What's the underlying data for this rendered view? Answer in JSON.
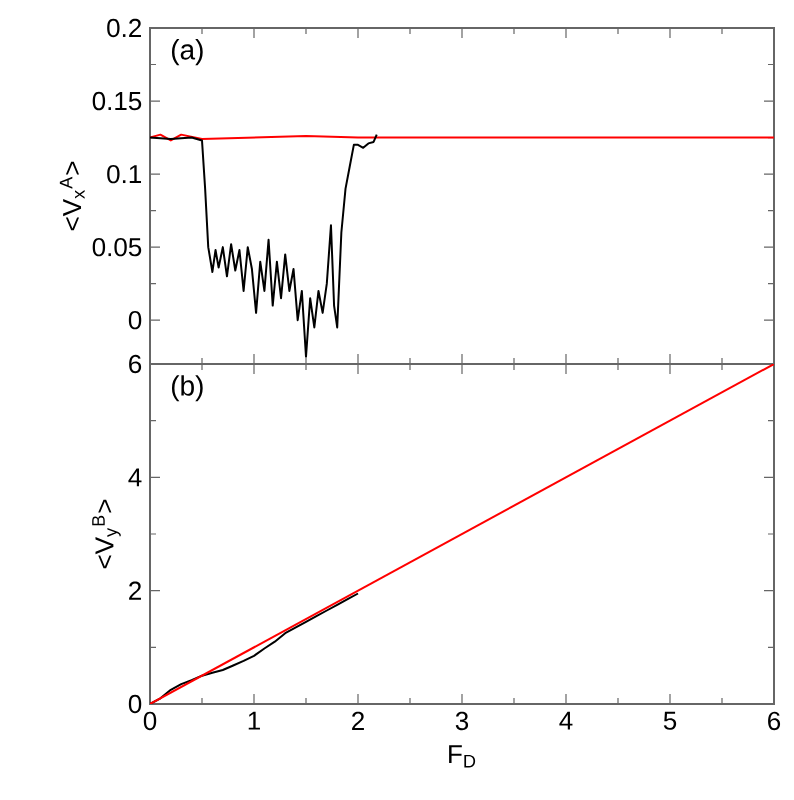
{
  "chart_data": [
    {
      "type": "line",
      "ylabel": "<V$_{x}$$^{A}$>",
      "annotations": [
        "(a)"
      ],
      "xlim": [
        0,
        6
      ],
      "xticks": [
        0,
        1,
        2,
        3,
        4,
        5,
        6
      ],
      "ylim": [
        -0.03,
        0.2
      ],
      "yticks": [
        0,
        0.05,
        0.1,
        0.15,
        0.2
      ],
      "tick_labels": "y",
      "grid": false,
      "line_style": "solid",
      "marker": "none",
      "series": [
        {
          "color": "#ff0000",
          "x": [
            0,
            0.1,
            0.2,
            0.3,
            0.5,
            1,
            1.5,
            2,
            2.5,
            3,
            4,
            5,
            6
          ],
          "values": [
            0.125,
            0.127,
            0.123,
            0.127,
            0.124,
            0.125,
            0.126,
            0.125,
            0.125,
            0.125,
            0.125,
            0.125,
            0.125
          ]
        },
        {
          "color": "#000000",
          "x": [
            0,
            0.2,
            0.4,
            0.5,
            0.53,
            0.56,
            0.6,
            0.63,
            0.66,
            0.7,
            0.74,
            0.78,
            0.82,
            0.86,
            0.9,
            0.94,
            0.98,
            1.02,
            1.06,
            1.1,
            1.14,
            1.18,
            1.22,
            1.26,
            1.3,
            1.34,
            1.38,
            1.42,
            1.46,
            1.5,
            1.54,
            1.58,
            1.62,
            1.66,
            1.7,
            1.74,
            1.77,
            1.8,
            1.84,
            1.88,
            1.92,
            1.96,
            2.0,
            2.05,
            2.1,
            2.15,
            2.18
          ],
          "values": [
            0.125,
            0.124,
            0.125,
            0.123,
            0.09,
            0.05,
            0.033,
            0.048,
            0.036,
            0.05,
            0.03,
            0.052,
            0.034,
            0.048,
            0.02,
            0.05,
            0.035,
            0.005,
            0.04,
            0.02,
            0.055,
            0.01,
            0.04,
            0.015,
            0.045,
            0.02,
            0.035,
            0.0,
            0.02,
            -0.025,
            0.015,
            -0.005,
            0.02,
            0.005,
            0.025,
            0.065,
            0.01,
            -0.005,
            0.06,
            0.09,
            0.105,
            0.12,
            0.12,
            0.118,
            0.121,
            0.122,
            0.127
          ]
        }
      ]
    },
    {
      "type": "line",
      "xlabel": "F$_{D}$",
      "ylabel": "<V$_{y}$$^{B}$>",
      "annotations": [
        "(b)"
      ],
      "xlim": [
        0,
        6
      ],
      "xticks": [
        0,
        1,
        2,
        3,
        4,
        5,
        6
      ],
      "ylim": [
        0,
        6
      ],
      "yticks": [
        0,
        2,
        4,
        6
      ],
      "grid": false,
      "line_style": "solid",
      "marker": "none",
      "series": [
        {
          "color": "#000000",
          "x": [
            0,
            0.1,
            0.2,
            0.3,
            0.4,
            0.5,
            0.6,
            0.7,
            0.8,
            0.9,
            1.0,
            1.1,
            1.2,
            1.3,
            1.4,
            1.5,
            1.6,
            1.7,
            1.8,
            1.9,
            2.0
          ],
          "values": [
            0,
            0.1,
            0.25,
            0.35,
            0.42,
            0.5,
            0.55,
            0.6,
            0.68,
            0.76,
            0.85,
            0.98,
            1.1,
            1.25,
            1.35,
            1.45,
            1.55,
            1.65,
            1.75,
            1.85,
            1.95
          ]
        },
        {
          "color": "#ff0000",
          "x": [
            0,
            6
          ],
          "values": [
            0,
            6
          ]
        }
      ]
    }
  ]
}
